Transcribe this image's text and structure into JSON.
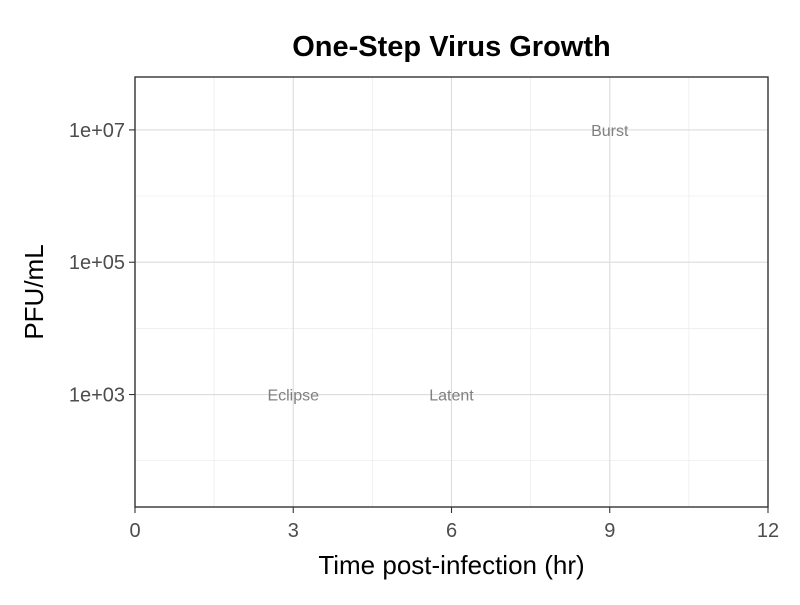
{
  "chart_data": {
    "type": "line",
    "title": "One-Step Virus Growth",
    "xlabel": "Time post-infection (hr)",
    "ylabel": "PFU/mL",
    "xlim": [
      0,
      12
    ],
    "ylim_log10": [
      1.3,
      7.8
    ],
    "y_scale": "log10",
    "x_ticks": [
      0,
      3,
      6,
      9,
      12
    ],
    "x_tick_labels": [
      "0",
      "3",
      "6",
      "9",
      "12"
    ],
    "y_ticks": [
      1000,
      100000,
      10000000
    ],
    "y_tick_labels": [
      "1e+03",
      "1e+05",
      "1e+07"
    ],
    "grid": true,
    "series": [],
    "annotations": [
      {
        "text": "Eclipse",
        "x": 3,
        "y": 1000
      },
      {
        "text": "Latent",
        "x": 6,
        "y": 1000
      },
      {
        "text": "Burst",
        "x": 9,
        "y": 10000000
      }
    ]
  }
}
